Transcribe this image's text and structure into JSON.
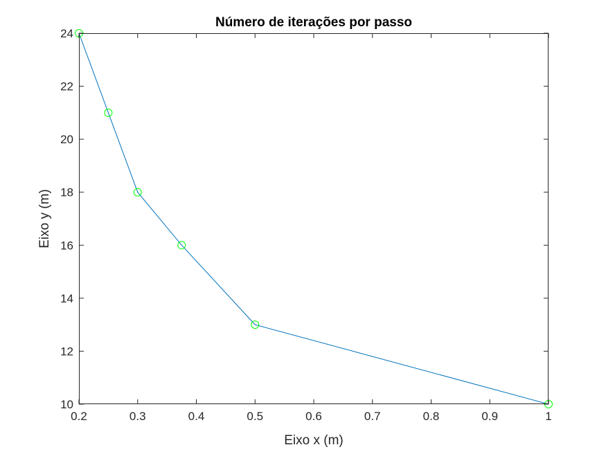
{
  "chart_data": {
    "type": "line",
    "title": "Número de iterações por passo",
    "xlabel": "Eixo x (m)",
    "ylabel": "Eixo y (m)",
    "xlim": [
      0.2,
      1
    ],
    "ylim": [
      10,
      24
    ],
    "x_ticks": [
      0.2,
      0.3,
      0.4,
      0.5,
      0.6,
      0.7,
      0.8,
      0.9,
      1
    ],
    "x_tick_labels": [
      "0.2",
      "0.3",
      "0.4",
      "0.5",
      "0.6",
      "0.7",
      "0.8",
      "0.9",
      "1"
    ],
    "y_ticks": [
      10,
      12,
      14,
      16,
      18,
      20,
      22,
      24
    ],
    "y_tick_labels": [
      "10",
      "12",
      "14",
      "16",
      "18",
      "20",
      "22",
      "24"
    ],
    "grid": false,
    "series": [
      {
        "x": [
          0.2,
          0.25,
          0.3,
          0.375,
          0.5,
          1
        ],
        "y": [
          24,
          21,
          18,
          16,
          13,
          10
        ],
        "line_color": "#0072BD",
        "marker": "circle",
        "marker_color": "#00FF00"
      }
    ]
  }
}
